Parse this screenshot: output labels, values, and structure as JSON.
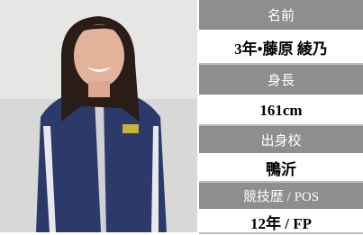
{
  "profile": {
    "rows": [
      {
        "label": "名前",
        "value": "3年•藤原 綾乃"
      },
      {
        "label": "身長",
        "value": "161cm"
      },
      {
        "label": "出身校",
        "value": "鴨沂"
      },
      {
        "label": "競技歴 / POS",
        "value": "12年 /  FP"
      }
    ]
  }
}
